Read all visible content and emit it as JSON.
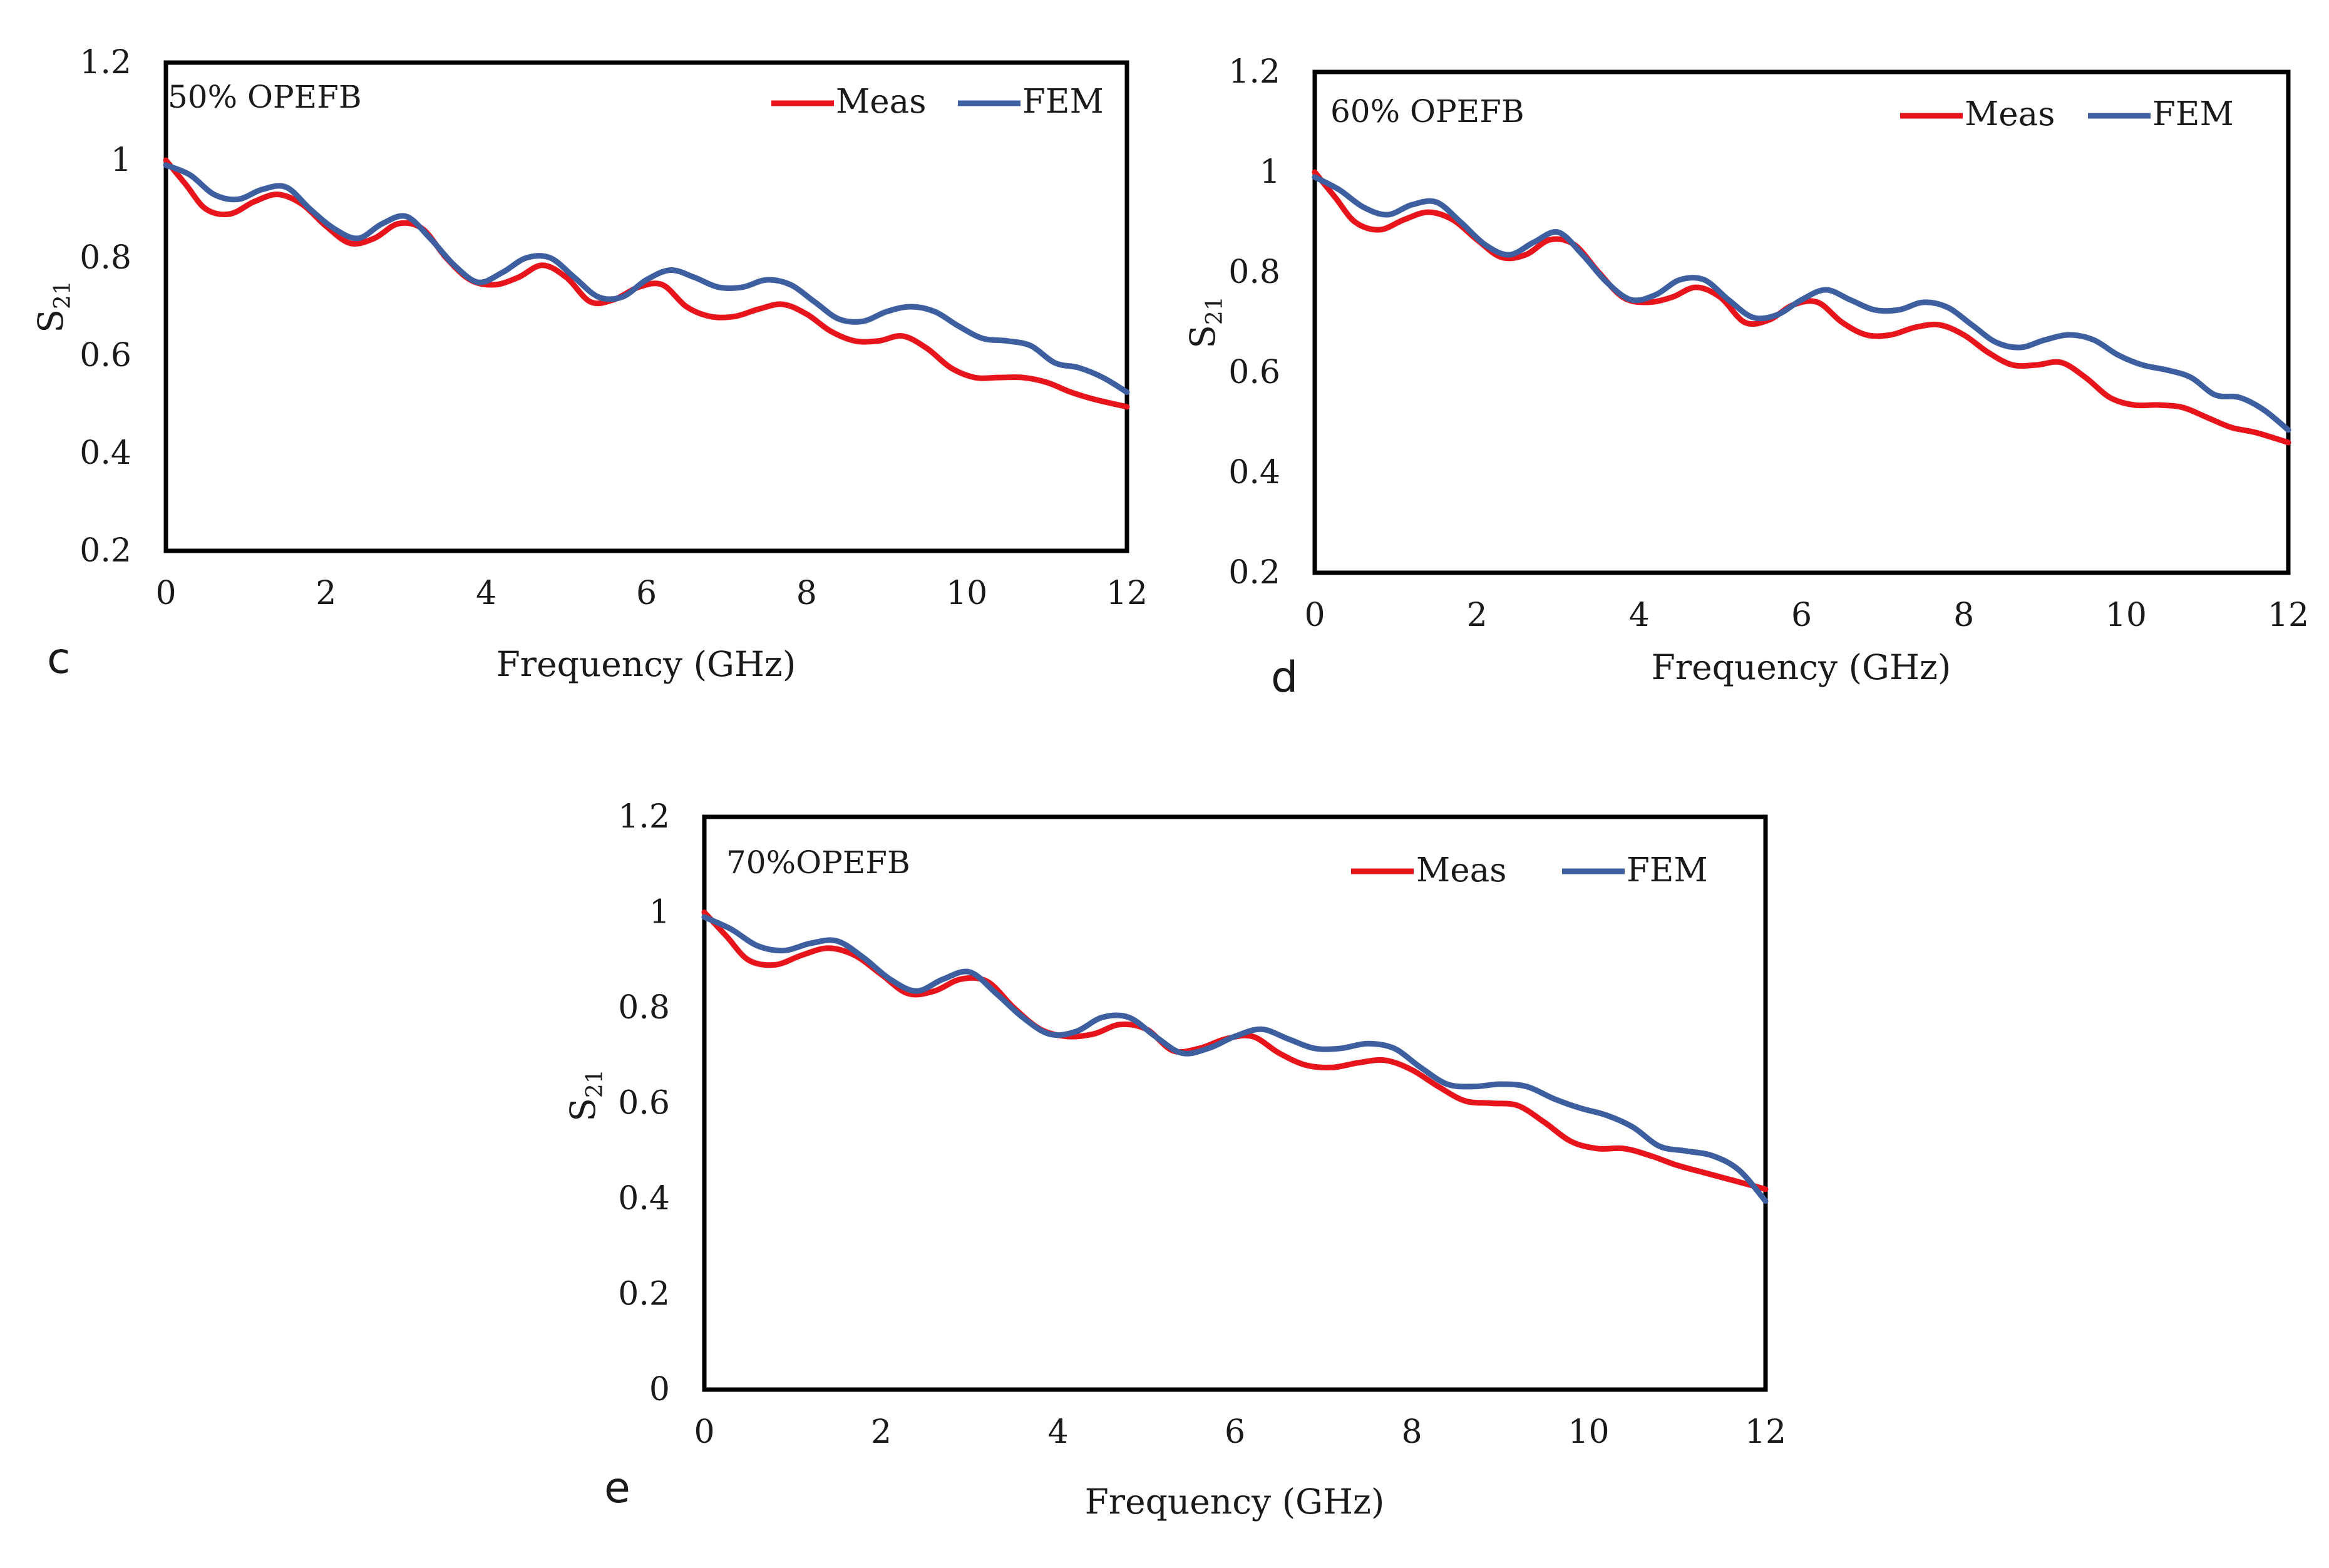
{
  "chart_data": [
    {
      "type": "line",
      "panel_label": "c",
      "annotation": "50% OPEFB",
      "xlabel": "Frequency (GHz)",
      "ylabel_main": "S",
      "ylabel_sub": "21",
      "xlim": [
        0,
        12
      ],
      "ylim": [
        0.2,
        1.2
      ],
      "x_ticks": [
        "0",
        "2",
        "4",
        "6",
        "8",
        "10",
        "12"
      ],
      "y_ticks": [
        "0.2",
        "0.4",
        "0.6",
        "0.8",
        "1",
        "1.2"
      ],
      "legend_position": "top-right",
      "series": [
        {
          "name": "Meas",
          "color": "#e8141c",
          "x": [
            0,
            0.25,
            0.5,
            0.8,
            1.1,
            1.4,
            1.7,
            2.0,
            2.3,
            2.6,
            2.9,
            3.2,
            3.5,
            3.8,
            4.1,
            4.4,
            4.7,
            5.0,
            5.3,
            5.6,
            5.9,
            6.2,
            6.5,
            6.8,
            7.1,
            7.4,
            7.7,
            8.0,
            8.3,
            8.6,
            8.9,
            9.2,
            9.5,
            9.8,
            10.1,
            10.4,
            10.7,
            11.0,
            11.3,
            11.6,
            12.0
          ],
          "y": [
            1.0,
            0.95,
            0.9,
            0.89,
            0.915,
            0.93,
            0.91,
            0.865,
            0.83,
            0.84,
            0.87,
            0.86,
            0.8,
            0.755,
            0.745,
            0.76,
            0.785,
            0.76,
            0.71,
            0.715,
            0.74,
            0.745,
            0.7,
            0.68,
            0.68,
            0.695,
            0.705,
            0.685,
            0.65,
            0.63,
            0.63,
            0.64,
            0.615,
            0.575,
            0.555,
            0.555,
            0.555,
            0.545,
            0.525,
            0.51,
            0.495
          ]
        },
        {
          "name": "FEM",
          "color": "#3d5fa0",
          "x": [
            0,
            0.3,
            0.6,
            0.9,
            1.2,
            1.5,
            1.8,
            2.1,
            2.4,
            2.7,
            3.0,
            3.3,
            3.6,
            3.9,
            4.2,
            4.5,
            4.8,
            5.1,
            5.4,
            5.7,
            6.0,
            6.3,
            6.6,
            6.9,
            7.2,
            7.5,
            7.8,
            8.1,
            8.4,
            8.7,
            9.0,
            9.3,
            9.6,
            9.9,
            10.2,
            10.5,
            10.8,
            11.1,
            11.4,
            11.7,
            12.0
          ],
          "y": [
            0.99,
            0.97,
            0.93,
            0.92,
            0.94,
            0.945,
            0.9,
            0.86,
            0.84,
            0.87,
            0.885,
            0.84,
            0.785,
            0.75,
            0.77,
            0.8,
            0.8,
            0.76,
            0.72,
            0.72,
            0.755,
            0.775,
            0.76,
            0.74,
            0.74,
            0.755,
            0.745,
            0.71,
            0.675,
            0.67,
            0.69,
            0.7,
            0.69,
            0.66,
            0.635,
            0.63,
            0.62,
            0.585,
            0.575,
            0.555,
            0.525
          ]
        }
      ]
    },
    {
      "type": "line",
      "panel_label": "d",
      "annotation": "60% OPEFB",
      "xlabel": "Frequency (GHz)",
      "ylabel_main": "S",
      "ylabel_sub": "21",
      "xlim": [
        0,
        12
      ],
      "ylim": [
        0.2,
        1.2
      ],
      "x_ticks": [
        "0",
        "2",
        "4",
        "6",
        "8",
        "10",
        "12"
      ],
      "y_ticks": [
        "0.2",
        "0.4",
        "0.6",
        "0.8",
        "1",
        "1.2"
      ],
      "legend_position": "top-right",
      "series": [
        {
          "name": "Meas",
          "color": "#e8141c",
          "x": [
            0,
            0.25,
            0.5,
            0.8,
            1.1,
            1.4,
            1.7,
            2.0,
            2.3,
            2.6,
            2.9,
            3.2,
            3.5,
            3.8,
            4.1,
            4.4,
            4.7,
            5.0,
            5.3,
            5.6,
            5.9,
            6.2,
            6.5,
            6.8,
            7.1,
            7.4,
            7.7,
            8.0,
            8.3,
            8.6,
            8.9,
            9.2,
            9.5,
            9.8,
            10.1,
            10.4,
            10.7,
            11.0,
            11.3,
            11.6,
            12.0
          ],
          "y": [
            1.0,
            0.95,
            0.9,
            0.885,
            0.905,
            0.92,
            0.905,
            0.865,
            0.83,
            0.835,
            0.865,
            0.855,
            0.8,
            0.75,
            0.74,
            0.75,
            0.77,
            0.75,
            0.7,
            0.705,
            0.735,
            0.74,
            0.7,
            0.675,
            0.675,
            0.69,
            0.695,
            0.675,
            0.64,
            0.615,
            0.615,
            0.62,
            0.59,
            0.55,
            0.535,
            0.535,
            0.53,
            0.51,
            0.49,
            0.48,
            0.46
          ]
        },
        {
          "name": "FEM",
          "color": "#3d5fa0",
          "x": [
            0,
            0.3,
            0.6,
            0.9,
            1.2,
            1.5,
            1.8,
            2.1,
            2.4,
            2.7,
            3.0,
            3.3,
            3.6,
            3.9,
            4.2,
            4.5,
            4.8,
            5.1,
            5.4,
            5.7,
            6.0,
            6.3,
            6.6,
            6.9,
            7.2,
            7.5,
            7.8,
            8.1,
            8.4,
            8.7,
            9.0,
            9.3,
            9.6,
            9.9,
            10.2,
            10.5,
            10.8,
            11.1,
            11.4,
            11.7,
            12.0
          ],
          "y": [
            0.99,
            0.965,
            0.93,
            0.915,
            0.935,
            0.94,
            0.9,
            0.855,
            0.835,
            0.86,
            0.88,
            0.835,
            0.78,
            0.745,
            0.755,
            0.785,
            0.785,
            0.745,
            0.71,
            0.715,
            0.745,
            0.765,
            0.745,
            0.725,
            0.725,
            0.74,
            0.73,
            0.695,
            0.66,
            0.65,
            0.665,
            0.675,
            0.665,
            0.635,
            0.615,
            0.605,
            0.59,
            0.555,
            0.55,
            0.525,
            0.485
          ]
        }
      ]
    },
    {
      "type": "line",
      "panel_label": "e",
      "annotation": "70%OPEFB",
      "xlabel": "Frequency (GHz)",
      "ylabel_main": "S",
      "ylabel_sub": "21",
      "xlim": [
        0,
        12
      ],
      "ylim": [
        0,
        1.2
      ],
      "x_ticks": [
        "0",
        "2",
        "4",
        "6",
        "8",
        "10",
        "12"
      ],
      "y_ticks": [
        "0",
        "0.2",
        "0.4",
        "0.6",
        "0.8",
        "1",
        "1.2"
      ],
      "legend_position": "top-right",
      "series": [
        {
          "name": "Meas",
          "color": "#e8141c",
          "x": [
            0,
            0.25,
            0.5,
            0.8,
            1.1,
            1.4,
            1.7,
            2.0,
            2.3,
            2.6,
            2.9,
            3.2,
            3.5,
            3.8,
            4.1,
            4.4,
            4.7,
            5.0,
            5.3,
            5.6,
            5.9,
            6.2,
            6.5,
            6.8,
            7.1,
            7.4,
            7.7,
            8.0,
            8.3,
            8.6,
            8.9,
            9.2,
            9.5,
            9.8,
            10.1,
            10.4,
            10.7,
            11.0,
            11.3,
            11.6,
            12.0
          ],
          "y": [
            1.0,
            0.95,
            0.9,
            0.89,
            0.91,
            0.925,
            0.91,
            0.87,
            0.83,
            0.835,
            0.86,
            0.855,
            0.8,
            0.755,
            0.74,
            0.745,
            0.765,
            0.755,
            0.71,
            0.715,
            0.735,
            0.74,
            0.705,
            0.68,
            0.675,
            0.685,
            0.69,
            0.67,
            0.635,
            0.605,
            0.6,
            0.595,
            0.56,
            0.52,
            0.505,
            0.505,
            0.49,
            0.47,
            0.455,
            0.44,
            0.42
          ]
        },
        {
          "name": "FEM",
          "color": "#3d5fa0",
          "x": [
            0,
            0.3,
            0.6,
            0.9,
            1.2,
            1.5,
            1.8,
            2.1,
            2.4,
            2.7,
            3.0,
            3.3,
            3.6,
            3.9,
            4.2,
            4.5,
            4.8,
            5.1,
            5.4,
            5.7,
            6.0,
            6.3,
            6.6,
            6.9,
            7.2,
            7.5,
            7.8,
            8.1,
            8.4,
            8.7,
            9.0,
            9.3,
            9.6,
            9.9,
            10.2,
            10.5,
            10.8,
            11.1,
            11.4,
            11.7,
            12.0
          ],
          "y": [
            0.99,
            0.965,
            0.93,
            0.92,
            0.935,
            0.94,
            0.905,
            0.86,
            0.835,
            0.86,
            0.875,
            0.83,
            0.78,
            0.745,
            0.75,
            0.78,
            0.78,
            0.74,
            0.705,
            0.715,
            0.74,
            0.755,
            0.735,
            0.715,
            0.715,
            0.725,
            0.715,
            0.675,
            0.64,
            0.635,
            0.64,
            0.635,
            0.61,
            0.59,
            0.575,
            0.55,
            0.51,
            0.5,
            0.49,
            0.46,
            0.395
          ]
        }
      ]
    }
  ]
}
